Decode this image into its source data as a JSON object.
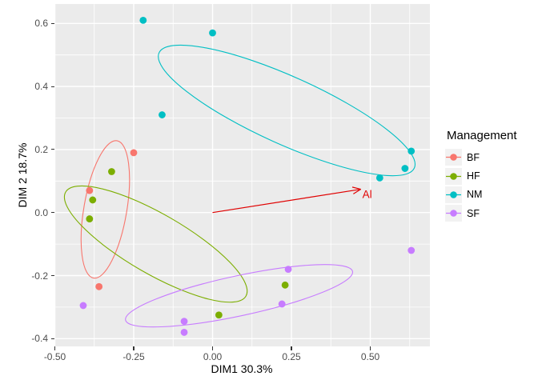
{
  "chart_data": {
    "type": "scatter",
    "title": "",
    "xlabel": "DIM1 30.3%",
    "ylabel": "DIM 2 18.7%",
    "legend_title": "Management",
    "legend_position": "right",
    "grid": true,
    "panel_bg": "#EBEBEB",
    "grid_color": "#FFFFFF",
    "tick_text_color": "#4D4D4D",
    "xlim": [
      -0.501,
      0.689
    ],
    "ylim": [
      -0.425,
      0.662
    ],
    "x_ticks": [
      -0.5,
      -0.25,
      0.0,
      0.25,
      0.5
    ],
    "x_tick_labels": [
      "-0.50",
      "-0.25",
      "0.00",
      "0.25",
      "0.50"
    ],
    "y_ticks": [
      0.6,
      0.4,
      0.2,
      0.0,
      -0.2,
      -0.4
    ],
    "y_tick_labels": [
      "0.6",
      "0.4",
      "0.2",
      "0.0",
      "-0.2",
      "-0.4"
    ],
    "x_minor_ticks": [
      -0.375,
      -0.125,
      0.125,
      0.375,
      0.625
    ],
    "y_minor_ticks": [
      0.5,
      0.3,
      0.1,
      -0.1,
      -0.3
    ],
    "series": [
      {
        "name": "BF",
        "color": "#F8766D",
        "points": [
          [
            -0.25,
            0.19
          ],
          [
            -0.39,
            0.07
          ],
          [
            -0.36,
            -0.235
          ]
        ],
        "ellipse": {
          "cx": -0.34,
          "cy": 0.01,
          "a": 0.221,
          "b": 0.068,
          "angle_deg": 80.3
        }
      },
      {
        "name": "HF",
        "color": "#7CAE00",
        "points": [
          [
            -0.32,
            0.13
          ],
          [
            -0.38,
            0.04
          ],
          [
            -0.39,
            -0.02
          ],
          [
            0.02,
            -0.325
          ],
          [
            0.23,
            -0.23
          ]
        ],
        "ellipse": {
          "cx": -0.18,
          "cy": -0.1,
          "a": 0.33,
          "b": 0.095,
          "angle_deg": -30
        }
      },
      {
        "name": "NM",
        "color": "#00BFC4",
        "points": [
          [
            -0.22,
            0.61
          ],
          [
            0.0,
            0.57
          ],
          [
            -0.16,
            0.31
          ],
          [
            0.63,
            0.195
          ],
          [
            0.61,
            0.14
          ],
          [
            0.53,
            0.11
          ]
        ],
        "ellipse": {
          "cx": 0.235,
          "cy": 0.324,
          "a": 0.444,
          "b": 0.107,
          "angle_deg": -24.3
        }
      },
      {
        "name": "SF",
        "color": "#C77CFF",
        "points": [
          [
            -0.41,
            -0.295
          ],
          [
            -0.09,
            -0.345
          ],
          [
            -0.09,
            -0.38
          ],
          [
            0.24,
            -0.18
          ],
          [
            0.22,
            -0.29
          ],
          [
            0.63,
            -0.12
          ]
        ],
        "ellipse": {
          "cx": 0.084,
          "cy": -0.264,
          "a": 0.368,
          "b": 0.0635,
          "angle_deg": 12.1
        }
      }
    ],
    "arrow": {
      "label": "Al",
      "color": "#E00000",
      "from": [
        0.0,
        0.0
      ],
      "to": [
        0.47,
        0.074
      ]
    }
  }
}
